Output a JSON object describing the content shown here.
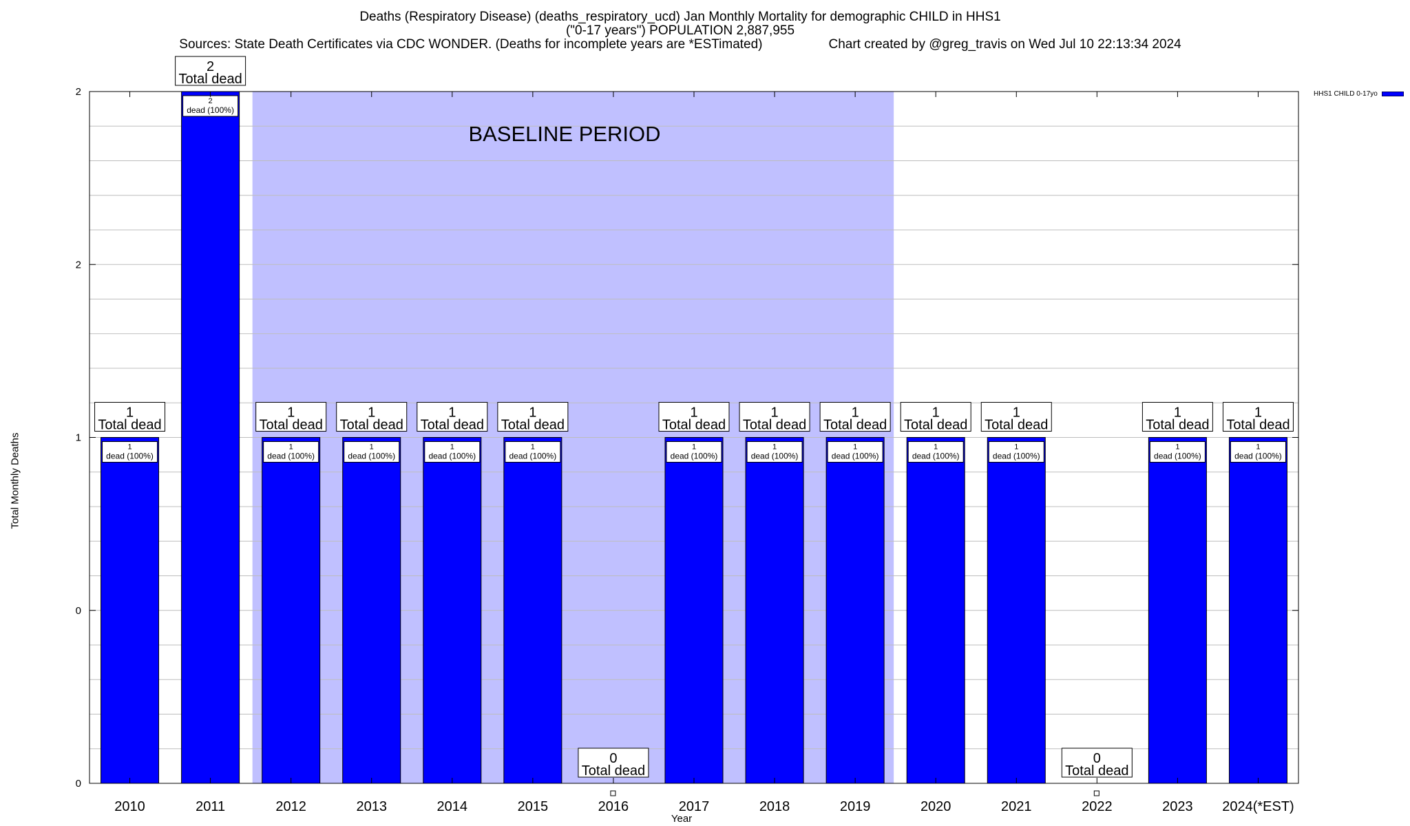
{
  "title": {
    "line1": "Deaths (Respiratory Disease) (deaths_respiratory_ucd) Jan Monthly Mortality for demographic CHILD in HHS1",
    "line2": "(\"0-17 years\") POPULATION 2,887,955",
    "sources": "Sources: State Death Certificates via CDC WONDER. (Deaths for incomplete years are *ESTimated)",
    "credit": "Chart created by @greg_travis on Wed Jul 10 22:13:34 2024"
  },
  "chart_data": {
    "type": "bar",
    "categories": [
      "2010",
      "2011",
      "2012",
      "2013",
      "2014",
      "2015",
      "2016",
      "2017",
      "2018",
      "2019",
      "2020",
      "2021",
      "2022",
      "2023",
      "2024(*EST)"
    ],
    "series": [
      {
        "name": "HHS1 CHILD 0-17yo",
        "values": [
          1,
          2,
          1,
          1,
          1,
          1,
          0,
          1,
          1,
          1,
          1,
          1,
          0,
          1,
          1
        ],
        "color": "#0000ff"
      }
    ],
    "ylabel": "Total Monthly Deaths",
    "xlabel": "Year",
    "ylim": [
      0,
      2
    ],
    "y_tick_labels": [
      "0",
      "0",
      "1",
      "2",
      "2"
    ],
    "grid": true,
    "legend_position": "top-right",
    "total_label_suffix": "Total dead",
    "inner_label_suffix": "dead (100%)",
    "baseline": {
      "label": "BASELINE PERIOD",
      "from": "2012",
      "to": "2019",
      "color": "#c0c0ff"
    }
  }
}
